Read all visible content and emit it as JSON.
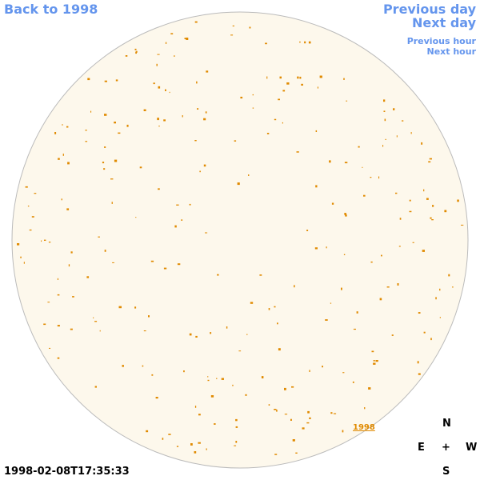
{
  "links": {
    "back": "Back to 1998",
    "previous_day": "Previous day",
    "next_day": "Next day",
    "previous_hour": "Previous hour",
    "next_hour": "Next hour"
  },
  "annotation": "1998",
  "timestamp": "1998-02-08T17:35:33",
  "compass": {
    "north": "N",
    "east": "E",
    "center": "+",
    "west": "W",
    "south": "S"
  }
}
